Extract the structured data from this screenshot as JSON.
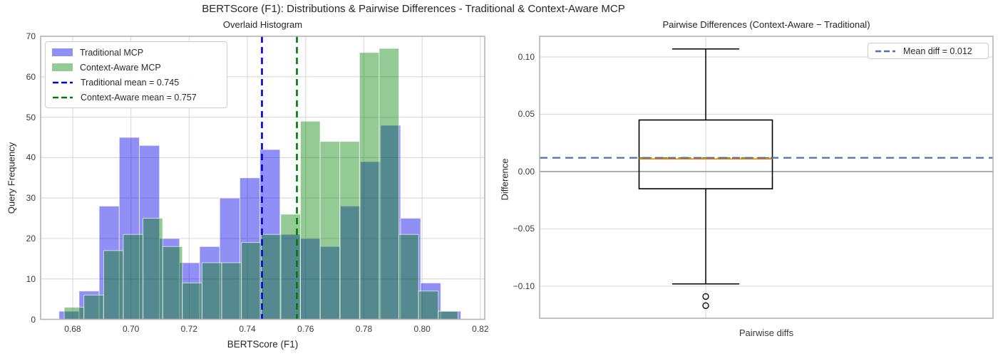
{
  "figure": {
    "title": "BERTScore (F1): Distributions & Pairwise Differences - Traditional & Context-Aware MCP",
    "background": "#ffffff",
    "grid_color": "#dcdcdc",
    "spine_color": "#b4b4b4",
    "tick_text_color": "#3a3a3a"
  },
  "chart_data": [
    {
      "type": "bar",
      "subtype": "overlaid-histogram",
      "title": "Overlaid Histogram",
      "xlabel": "BERTScore (F1)",
      "ylabel": "Query Frequency",
      "xlim": [
        0.669,
        0.8215
      ],
      "ylim": [
        0,
        70
      ],
      "xticks": [
        0.68,
        0.7,
        0.72,
        0.74,
        0.76,
        0.78,
        0.8,
        0.82
      ],
      "xtick_labels": [
        "0.68",
        "0.70",
        "0.72",
        "0.74",
        "0.76",
        "0.78",
        "0.80",
        "0.82"
      ],
      "yticks": [
        0,
        10,
        20,
        30,
        40,
        50,
        60,
        70
      ],
      "ytick_labels": [
        "0",
        "10",
        "20",
        "30",
        "40",
        "50",
        "60",
        "70"
      ],
      "grid": true,
      "legend_position": "upper-left",
      "series": [
        {
          "name": "Traditional MCP",
          "bin_start": 0.6753,
          "bin_width": 0.0069,
          "counts": [
            2,
            7,
            28,
            45,
            43,
            20,
            14,
            18,
            30,
            35,
            42,
            21,
            20,
            18,
            28,
            39,
            48,
            25,
            9,
            2
          ],
          "fill": "rgba(0,0,235,0.44)",
          "edge": "rgba(255,255,255,0.65)"
        },
        {
          "name": "Context-Aware MCP",
          "bin_start": 0.6771,
          "bin_width": 0.00676,
          "counts": [
            3,
            6,
            17,
            21,
            25,
            18,
            9,
            14,
            14,
            19,
            21,
            26,
            49,
            44,
            44,
            66,
            67,
            21,
            7,
            2
          ],
          "fill": "rgba(0,128,0,0.42)",
          "edge": "rgba(255,255,255,0.65)"
        }
      ],
      "mean_lines": [
        {
          "label": "Traditional mean = 0.745",
          "x": 0.745,
          "color": "#0000dd"
        },
        {
          "label": "Context-Aware mean = 0.757",
          "x": 0.757,
          "color": "#007a00"
        }
      ]
    },
    {
      "type": "box",
      "title": "Pairwise Differences (Context-Aware − Traditional)",
      "ylabel": "Difference",
      "xtick_label": "Pairwise diffs",
      "ylim": [
        -0.128,
        0.118
      ],
      "yticks": [
        0.1,
        0.05,
        0.0,
        -0.05,
        -0.1
      ],
      "ytick_labels": [
        "0.10",
        "0.05",
        "0.00",
        "−0.05",
        "−0.10"
      ],
      "grid": true,
      "box": {
        "q1": -0.015,
        "q3": 0.045,
        "median": 0.011,
        "mean": 0.012,
        "whisker_low": -0.098,
        "whisker_high": 0.107,
        "outliers": [
          -0.109,
          -0.117
        ],
        "line_color": "#000000",
        "median_color": "#ff7f0e",
        "mean_inner_color": "#2ca02c"
      },
      "zero_line": {
        "y": 0,
        "color": "#8a8a8a"
      },
      "mean_line": {
        "label": "Mean diff = 0.012",
        "y": 0.012,
        "color": "#4c72b0"
      },
      "legend_position": "upper-right"
    }
  ]
}
